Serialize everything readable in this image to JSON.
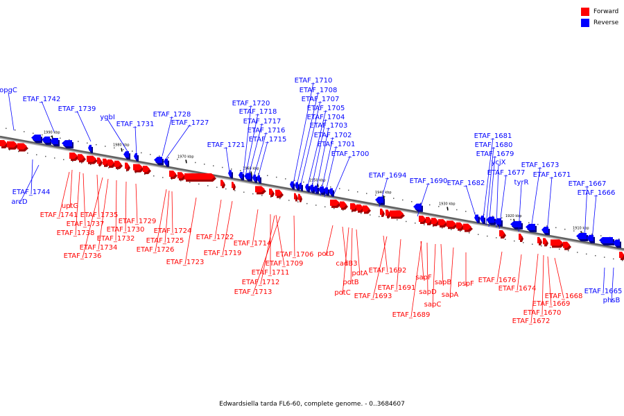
{
  "legend": {
    "forward_label": "Forward",
    "reverse_label": "Reverse",
    "forward_color": "#ff0000",
    "reverse_color": "#0000ff"
  },
  "caption": "Edwardsiella tarda FL6-60, complete genome. - 0..3684607",
  "axis_ticks": [
    "1990 kbp",
    "1980 kbp",
    "1970 kbp",
    "1960 kbp",
    "1950 kbp",
    "1940 kbp",
    "1930 kbp",
    "1920 kbp",
    "1910 kbp"
  ],
  "forward_genes": [
    "uptG",
    "ETAF_1741",
    "ETAF_1735",
    "ETAF_1737",
    "ETAF_1738",
    "ETAF_1734",
    "ETAF_1736",
    "ETAF_1729",
    "ETAF_1730",
    "ETAF_1732",
    "ETAF_1724",
    "ETAF_1725",
    "ETAF_1726",
    "ETAF_1723",
    "ETAF_1722",
    "ETAF_1719",
    "ETAF_1714",
    "ETAF_1711",
    "ETAF_1712",
    "ETAF_1713",
    "ETAF_1706",
    "ETAF_1709",
    "potD",
    "cadB3",
    "potA",
    "potB",
    "potC",
    "ETAF_1692",
    "ETAF_1693",
    "ETAF_1691",
    "sapF",
    "sapB",
    "sapD",
    "sapA",
    "sapC",
    "ETAF_1689",
    "pspF",
    "ETAF_1676",
    "ETAF_1674",
    "ETAF_1668",
    "ETAF_1669",
    "ETAF_1670",
    "ETAF_1672"
  ],
  "reverse_genes": [
    "opgC",
    "ETAF_1742",
    "ETAF_1739",
    "ygbI",
    "ETAF_1731",
    "ETAF_1728",
    "ETAF_1727",
    "ETAF_1720",
    "ETAF_1718",
    "ETAF_1717",
    "ETAF_1716",
    "ETAF_1715",
    "ETAF_1721",
    "ETAF_1710",
    "ETAF_1708",
    "ETAF_1707",
    "ETAF_1705",
    "ETAF_1704",
    "ETAF_1703",
    "ETAF_1702",
    "ETAF_1701",
    "ETAF_1700",
    "ETAF_1744",
    "arcD",
    "ETAF_1694",
    "ETAF_1690",
    "ETAF_1682",
    "ETAF_1681",
    "ETAF_1680",
    "ETAF_1679",
    "ycjX",
    "ETAF_1677",
    "ETAF_1673",
    "tyrR",
    "ETAF_1671",
    "ETAF_1667",
    "ETAF_1666",
    "ETAF_1665",
    "phsB"
  ]
}
